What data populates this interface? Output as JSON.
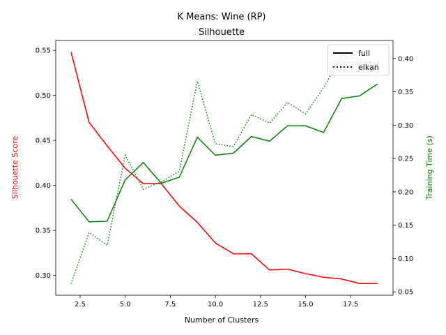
{
  "chart_data": {
    "type": "line",
    "title": "K Means: Wine (RP)",
    "subtitle": "Silhouette",
    "xlabel": "Number of Clusters",
    "ylabel_left": "Silhouette Score",
    "ylabel_right": "Training Time (s)",
    "xlim": [
      1.15,
      19.85
    ],
    "ylim_left": [
      0.278,
      0.561
    ],
    "ylim_right": [
      0.045,
      0.427
    ],
    "x_ticks": [
      "2.5",
      "5.0",
      "7.5",
      "10.0",
      "12.5",
      "15.0",
      "17.5"
    ],
    "y_left_ticks": [
      "0.30",
      "0.35",
      "0.40",
      "0.45",
      "0.50",
      "0.55"
    ],
    "y_right_ticks": [
      "0.05",
      "0.10",
      "0.15",
      "0.20",
      "0.25",
      "0.30",
      "0.35",
      "0.40"
    ],
    "x": [
      2,
      3,
      4,
      5,
      6,
      7,
      8,
      9,
      10,
      11,
      12,
      13,
      14,
      15,
      16,
      17,
      18,
      19
    ],
    "series": [
      {
        "name": "full",
        "axis": "left",
        "color": "#ff0000",
        "linestyle": "solid",
        "values": [
          0.548,
          0.47,
          0.444,
          0.419,
          0.402,
          0.402,
          0.377,
          0.359,
          0.336,
          0.324,
          0.324,
          0.306,
          0.307,
          0.302,
          0.298,
          0.296,
          0.291,
          0.291
        ]
      },
      {
        "name": "elkan",
        "axis": "left",
        "color": "#ff0000",
        "linestyle": "dotted",
        "values": [
          0.548,
          0.47,
          0.444,
          0.419,
          0.402,
          0.402,
          0.377,
          0.359,
          0.336,
          0.324,
          0.324,
          0.306,
          0.307,
          0.302,
          0.298,
          0.296,
          0.291,
          0.291
        ]
      },
      {
        "name": "full",
        "axis": "right",
        "color": "#008000",
        "linestyle": "solid",
        "values": [
          0.189,
          0.155,
          0.156,
          0.218,
          0.244,
          0.213,
          0.222,
          0.282,
          0.255,
          0.258,
          0.283,
          0.276,
          0.299,
          0.299,
          0.289,
          0.34,
          0.344,
          0.362
        ]
      },
      {
        "name": "elkan",
        "axis": "right",
        "color": "#008000",
        "linestyle": "dotted",
        "values": [
          0.062,
          0.139,
          0.12,
          0.255,
          0.204,
          0.215,
          0.231,
          0.366,
          0.272,
          0.268,
          0.316,
          0.303,
          0.334,
          0.317,
          0.356,
          0.405,
          0.399,
          0.391
        ]
      }
    ],
    "legend": {
      "position": "top-right",
      "entries": [
        {
          "label": "full",
          "linestyle": "solid",
          "color": "#000000"
        },
        {
          "label": "elkan",
          "linestyle": "dotted",
          "color": "#000000"
        }
      ]
    },
    "left_axis_color": "#ff0000",
    "right_axis_color": "#008000",
    "grid": false
  }
}
